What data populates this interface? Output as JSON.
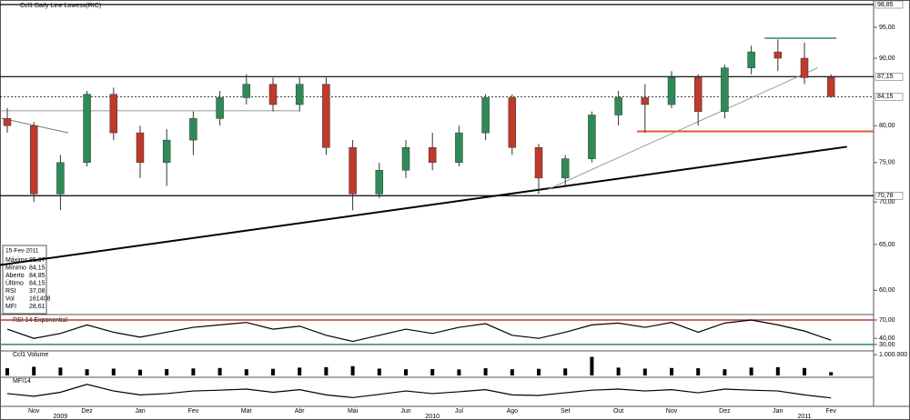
{
  "chart_data": {
    "type": "candlestick",
    "title": "Ccl1 Daily Line Lowess(RIC)",
    "log_scale": true,
    "categories": [
      null,
      "Nov",
      null,
      "Dez",
      null,
      "Jan",
      null,
      "Fev",
      null,
      "Mar",
      null,
      "Abr",
      null,
      "Mai",
      null,
      "Jun",
      null,
      "Jul",
      null,
      "Ago",
      null,
      "Set",
      null,
      "Out",
      null,
      "Nov",
      null,
      "Dez",
      null,
      "Jan",
      null,
      "Fev"
    ],
    "years": [
      null,
      null,
      "2009",
      null,
      null,
      null,
      null,
      null,
      null,
      null,
      null,
      null,
      null,
      null,
      null,
      null,
      "2010",
      null,
      null,
      null,
      null,
      null,
      null,
      null,
      null,
      null,
      null,
      null,
      null,
      null,
      "2011",
      null
    ],
    "open": [
      81,
      80,
      71,
      75,
      84.5,
      79,
      75,
      78,
      81,
      84,
      86,
      83,
      86,
      77,
      71,
      74,
      77,
      75,
      79,
      84,
      77,
      73,
      75.5,
      81.5,
      84,
      83,
      87,
      82,
      88.5,
      91,
      90,
      87
    ],
    "high": [
      82.5,
      80.5,
      76,
      85,
      85.5,
      80,
      79.5,
      82,
      85,
      87.5,
      87,
      87,
      87,
      78,
      75,
      78,
      79,
      80,
      84.5,
      84.5,
      77.5,
      76,
      82,
      85,
      86,
      88,
      87.5,
      89,
      92,
      93,
      92.5,
      87.5
    ],
    "low": [
      79,
      70,
      69,
      74.5,
      78,
      73,
      72,
      76,
      80,
      83,
      82,
      82,
      76,
      69,
      70.5,
      73,
      74,
      74.5,
      78,
      76,
      71,
      72,
      75,
      80,
      79,
      82.5,
      80,
      81,
      87.5,
      88,
      86,
      84
    ],
    "close": [
      80,
      71,
      75,
      84.5,
      79,
      75,
      78,
      81,
      84,
      86,
      83,
      86,
      77,
      71,
      74,
      77,
      75,
      79,
      84,
      77,
      73,
      75.5,
      81.5,
      84,
      83,
      87,
      82,
      88.5,
      91,
      90,
      87,
      84.15
    ],
    "up_color": "#2e8b57",
    "down_color": "#c0392b",
    "ylim": [
      57.6,
      98.85
    ],
    "yticks": [
      {
        "value": 60,
        "label": "60,00"
      },
      {
        "value": 65,
        "label": "65,00"
      },
      {
        "value": 70,
        "label": "70,00"
      },
      {
        "value": 75,
        "label": "75,00"
      },
      {
        "value": 80,
        "label": "80,00"
      },
      {
        "value": 90,
        "label": "90,00"
      },
      {
        "value": 95,
        "label": "95,00"
      }
    ],
    "levels": [
      {
        "value": 98.85,
        "label": "98,85",
        "color": "#000000"
      },
      {
        "value": 87.15,
        "label": "87,15",
        "color": "#000000"
      },
      {
        "value": 84.15,
        "label": "84,15",
        "color": "#c0392b",
        "dashed": true
      },
      {
        "value": 70.78,
        "label": "70,78",
        "color": "#000000"
      }
    ],
    "lines": [
      {
        "x": [
          -0.3,
          31.6
        ],
        "y": [
          62.7,
          77.1
        ],
        "color": "#000000",
        "width": 2
      },
      {
        "x": [
          20.3,
          30.5
        ],
        "y": [
          71.5,
          88.5
        ],
        "color": "#999999",
        "width": 1
      },
      {
        "x": [
          23.7,
          32.6
        ],
        "y": [
          79.2,
          79.2
        ],
        "color": "#e0573d",
        "width": 2
      },
      {
        "x": [
          28.5,
          31.2
        ],
        "y": [
          93.2,
          93.2
        ],
        "color": "#2e8b57",
        "width": 1.5
      },
      {
        "x": [
          -0.3,
          2.3
        ],
        "y": [
          81.1,
          79
        ],
        "color": "#777777",
        "width": 1
      },
      {
        "x": [
          -0.3,
          11
        ],
        "y": [
          82.1,
          82.1
        ],
        "color": "#777777",
        "width": 0.8
      }
    ],
    "info": {
      "date": "15-Fev-2011",
      "rows": [
        [
          "Máximo",
          "85,97"
        ],
        [
          "Mínimo",
          "84,15"
        ],
        [
          "Aberto",
          "84,85"
        ],
        [
          "Último",
          "84,15"
        ],
        [
          "RSI",
          "37,08"
        ],
        [
          "Vol",
          "161408"
        ],
        [
          "MFI",
          "28,61"
        ]
      ]
    },
    "rsi": {
      "title": "RSI 14 Exponential",
      "values": [
        55,
        40,
        48,
        62,
        50,
        42,
        50,
        58,
        62,
        66,
        55,
        60,
        45,
        35,
        45,
        55,
        48,
        58,
        64,
        45,
        40,
        50,
        62,
        65,
        58,
        66,
        50,
        65,
        70,
        62,
        52,
        37.08
      ],
      "ylim": [
        21,
        77.4
      ],
      "yticks": [
        {
          "value": 70,
          "label": "70,00"
        },
        {
          "value": 40,
          "label": "40,00"
        },
        {
          "value": 30,
          "label": "30,00"
        }
      ],
      "upper": 70,
      "lower": 30,
      "upper_color": "#c0392b",
      "lower_color": "#2e8b57"
    },
    "volume": {
      "title": "Ccl1 Volume",
      "values": [
        350000,
        420000,
        380000,
        300000,
        330000,
        280000,
        310000,
        340000,
        360000,
        300000,
        320000,
        380000,
        400000,
        450000,
        330000,
        300000,
        310000,
        290000,
        350000,
        300000,
        320000,
        340000,
        900000,
        380000,
        330000,
        360000,
        350000,
        300000,
        380000,
        400000,
        360000,
        161408
      ],
      "ylim": [
        0,
        1100000
      ],
      "yticks": [
        {
          "value": 1000000,
          "label": "1.000.000"
        }
      ]
    },
    "mfi": {
      "title": "MFI14",
      "values": [
        45,
        35,
        50,
        80,
        55,
        40,
        45,
        55,
        58,
        62,
        50,
        60,
        40,
        30,
        42,
        55,
        45,
        52,
        60,
        40,
        38,
        48,
        58,
        62,
        55,
        60,
        48,
        62,
        58,
        55,
        40,
        28.61
      ],
      "ylim": [
        0,
        100
      ]
    }
  }
}
